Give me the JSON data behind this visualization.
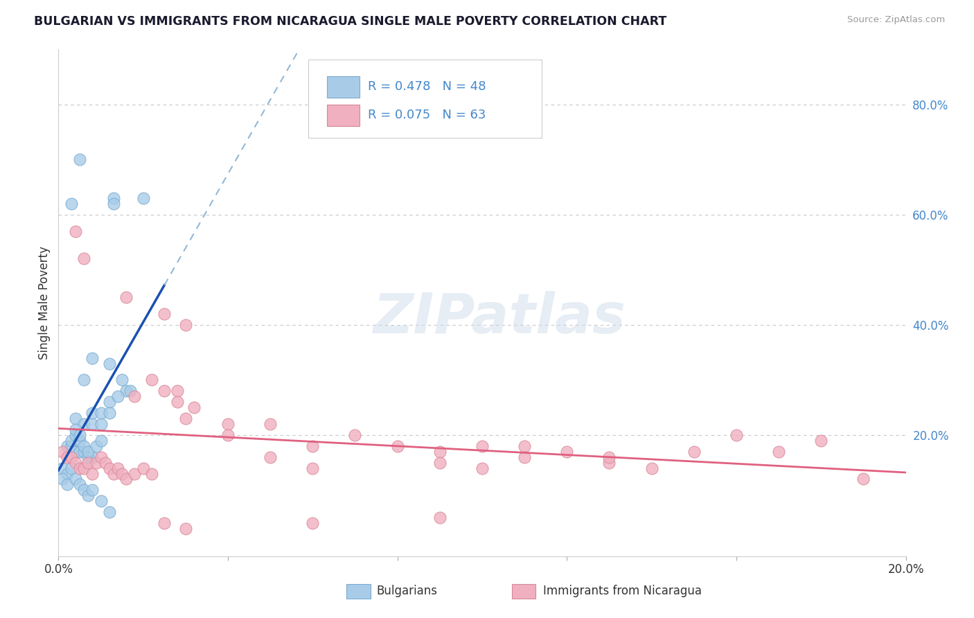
{
  "title": "BULGARIAN VS IMMIGRANTS FROM NICARAGUA SINGLE MALE POVERTY CORRELATION CHART",
  "source": "Source: ZipAtlas.com",
  "ylabel": "Single Male Poverty",
  "xlim": [
    0.0,
    0.2
  ],
  "ylim": [
    -0.02,
    0.9
  ],
  "yticks_right": [
    0.2,
    0.4,
    0.6,
    0.8
  ],
  "ytick_right_labels": [
    "20.0%",
    "40.0%",
    "60.0%",
    "80.0%"
  ],
  "grid_color": "#c8c8c8",
  "background_color": "#ffffff",
  "watermark": "ZIPatlas",
  "legend_R1": "R = 0.478",
  "legend_N1": "N = 48",
  "legend_R2": "R = 0.075",
  "legend_N2": "N = 63",
  "blue_scatter_color": "#a8cce8",
  "blue_scatter_edge": "#7aaad0",
  "pink_scatter_color": "#f0b0c0",
  "pink_scatter_edge": "#d88898",
  "blue_line_color": "#1a50b0",
  "blue_dash_color": "#90b8d8",
  "pink_line_color": "#e06080",
  "text_color": "#333333",
  "axis_label_color": "#4488cc",
  "source_color": "#999999"
}
